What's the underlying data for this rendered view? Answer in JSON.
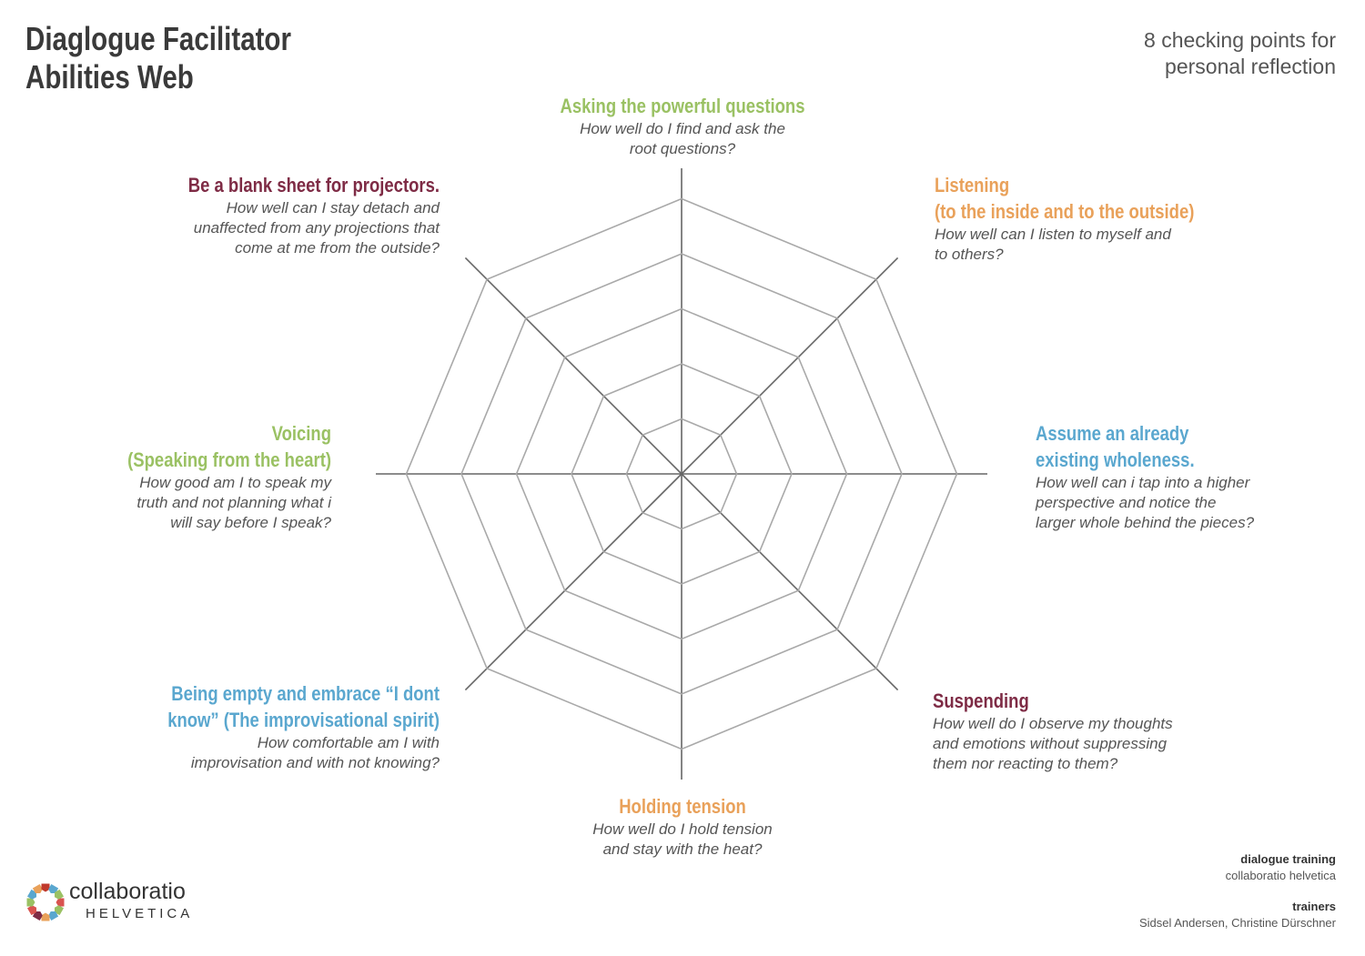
{
  "title": {
    "line1": "Diaglogue Facilitator",
    "line2": "Abilities Web"
  },
  "subtitle": {
    "line1": "8 checking points for",
    "line2": "personal reflection"
  },
  "colors": {
    "green": "#9ac163",
    "orange": "#e9a15a",
    "blue": "#5aa7cf",
    "maroon": "#7e2b45",
    "grid": "#a9a9a9"
  },
  "points": [
    {
      "id": "top",
      "color": "green",
      "title": [
        "Asking the powerful questions"
      ],
      "question": [
        "How well do I find and ask the",
        "root questions?"
      ]
    },
    {
      "id": "top-right",
      "color": "orange",
      "title": [
        "Listening",
        "(to the inside and to the outside)"
      ],
      "question": [
        "How well can I listen to myself and",
        "to others?"
      ]
    },
    {
      "id": "right",
      "color": "blue",
      "title": [
        "Assume an already",
        "existing wholeness."
      ],
      "question": [
        "How well can i tap into a higher",
        "perspective and notice the",
        "larger whole behind the pieces?"
      ]
    },
    {
      "id": "bottom-right",
      "color": "maroon",
      "title": [
        "Suspending"
      ],
      "question": [
        "How well do I observe my thoughts",
        "and emotions without suppressing",
        "them nor reacting to them?"
      ]
    },
    {
      "id": "bottom",
      "color": "orange",
      "title": [
        "Holding tension"
      ],
      "question": [
        "How well do I hold tension",
        "and stay with the heat?"
      ]
    },
    {
      "id": "bottom-left",
      "color": "blue",
      "title": [
        "Being empty and embrace  “I dont",
        "know” (The improvisational spirit)"
      ],
      "question": [
        "How comfortable am I with",
        "improvisation and with not knowing?"
      ]
    },
    {
      "id": "left",
      "color": "green",
      "title": [
        "Voicing",
        "(Speaking from the heart)"
      ],
      "question": [
        "How good am I to speak my",
        "truth and not planning what i",
        "will say before I speak?"
      ]
    },
    {
      "id": "top-left",
      "color": "maroon",
      "title": [
        "Be a blank sheet for projectors."
      ],
      "question": [
        "How well can I stay detach and",
        "unaffected from any projections that",
        "come at me from the outside?"
      ]
    }
  ],
  "web": {
    "axes": 8,
    "rings": 5
  },
  "logo": {
    "name": "collaboratio",
    "sub": "HELVETICA"
  },
  "credits": {
    "label1": "dialogue training",
    "value1": "collaboratio helvetica",
    "label2": "trainers",
    "value2": "Sidsel Andersen, Christine Dürschner"
  }
}
